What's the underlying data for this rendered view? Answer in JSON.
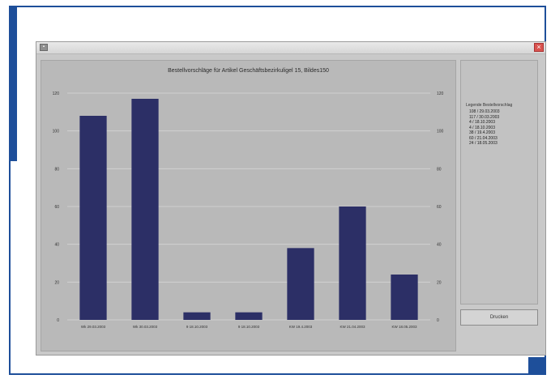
{
  "window": {
    "icon": "app-icon",
    "close_symbol": "×"
  },
  "chart_data": {
    "type": "bar",
    "title": "Bestellvorschläge für Artikel Geschäftsbezirkuligel 15, Bildes150",
    "categories": [
      "Wk 29.03.2003",
      "Wk 30.03.2003",
      "9 18.10.2003",
      "9 18.10.2003",
      "KW 19.4.2003",
      "KW 21.04.2003",
      "KW 18.05.2003"
    ],
    "values": [
      108,
      117,
      4,
      4,
      38,
      60,
      24
    ],
    "ylim": [
      0,
      120
    ],
    "yticks": [
      "0",
      "20",
      "40",
      "60",
      "80",
      "100",
      "120"
    ],
    "bar_color": "#2c2f66",
    "grid": true,
    "legend": "right"
  },
  "legend": {
    "title": "Legende Bestellvorschlag",
    "items": [
      "108 / 29.03.2003",
      "117 / 30.03.2003",
      "4 / 18.10.2003",
      "4 / 18.10.2003",
      "38 / 19.4.2003",
      "60 / 21.04.2003",
      "24 / 18.05.2003"
    ]
  },
  "button": {
    "label": "Drucken"
  }
}
